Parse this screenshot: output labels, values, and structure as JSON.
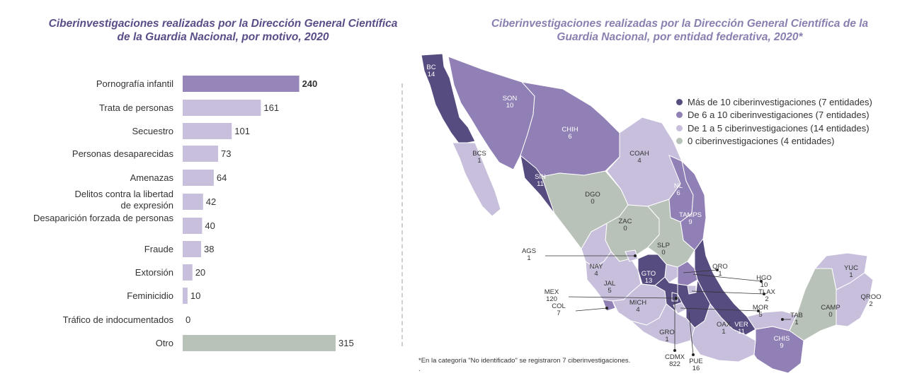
{
  "left_title": "Ciberinvestigaciones realizadas por la Dirección General Científica de la Guardia Nacional, por motivo, 2020",
  "right_title": "Ciberinvestigaciones realizadas por la Dirección General Científica de la Guardia Nacional, por entidad federativa, 2020*",
  "colors": {
    "dark": "#574c80",
    "medium": "#9180b5",
    "light": "#c7bfdb",
    "gray": "#b9c2b8",
    "top_bar": "#9685b8"
  },
  "chart_data": {
    "type": "bar",
    "orientation": "horizontal",
    "categories": [
      "Pornografía infantil",
      "Trata de personas",
      "Secuestro",
      "Personas desaparecidas",
      "Amenazas",
      "Delitos contra la libertad de expresión",
      "Desaparición forzada de personas",
      "Fraude",
      "Extorsión",
      "Feminicidio",
      "Tráfico de indocumentados",
      "Otro"
    ],
    "values": [
      240,
      161,
      101,
      73,
      64,
      42,
      40,
      38,
      20,
      10,
      0,
      315
    ],
    "title": "Ciberinvestigaciones realizadas por la Dirección General Científica de la Guardia Nacional, por motivo, 2020"
  },
  "legend": [
    {
      "label": "Más de 10 ciberinvestigaciones (7 entidades)",
      "color": "#574c80"
    },
    {
      "label": "De 6 a 10 ciberinvestigaciones (7 entidades)",
      "color": "#9180b5"
    },
    {
      "label": "De 1 a 5 ciberinvestigaciones (14 entidades)",
      "color": "#c7bfdb"
    },
    {
      "label": "0 ciberinvestigaciones (4 entidades)",
      "color": "#b9c2b8"
    }
  ],
  "map_states": [
    {
      "code": "BC",
      "value": "14"
    },
    {
      "code": "BCS",
      "value": "1"
    },
    {
      "code": "SON",
      "value": "10"
    },
    {
      "code": "CHIH",
      "value": "6"
    },
    {
      "code": "COAH",
      "value": "4"
    },
    {
      "code": "SIN",
      "value": "11"
    },
    {
      "code": "DGO",
      "value": "0"
    },
    {
      "code": "NL",
      "value": "6"
    },
    {
      "code": "TAMPS",
      "value": "9"
    },
    {
      "code": "ZAC",
      "value": "0"
    },
    {
      "code": "SLP",
      "value": "0"
    },
    {
      "code": "AGS",
      "value": "1"
    },
    {
      "code": "NAY",
      "value": "4"
    },
    {
      "code": "QRO",
      "value": "1"
    },
    {
      "code": "GTO",
      "value": "13"
    },
    {
      "code": "HGO",
      "value": "10"
    },
    {
      "code": "JAL",
      "value": "5"
    },
    {
      "code": "TLAX",
      "value": "2"
    },
    {
      "code": "MEX",
      "value": "120"
    },
    {
      "code": "MICH",
      "value": "4"
    },
    {
      "code": "MOR",
      "value": "5"
    },
    {
      "code": "COL",
      "value": "7"
    },
    {
      "code": "GRO",
      "value": "1"
    },
    {
      "code": "VER",
      "value": "11"
    },
    {
      "code": "TAB",
      "value": "1"
    },
    {
      "code": "CAMP",
      "value": "0"
    },
    {
      "code": "YUC",
      "value": "1"
    },
    {
      "code": "QROO",
      "value": "2"
    },
    {
      "code": "OAX",
      "value": "1"
    },
    {
      "code": "CHIS",
      "value": "9"
    },
    {
      "code": "CDMX",
      "value": "822"
    },
    {
      "code": "PUE",
      "value": "16"
    }
  ],
  "footnote": "*En la categoría \"No identificado\" se registraron 7 ciberinvestigaciones. ."
}
